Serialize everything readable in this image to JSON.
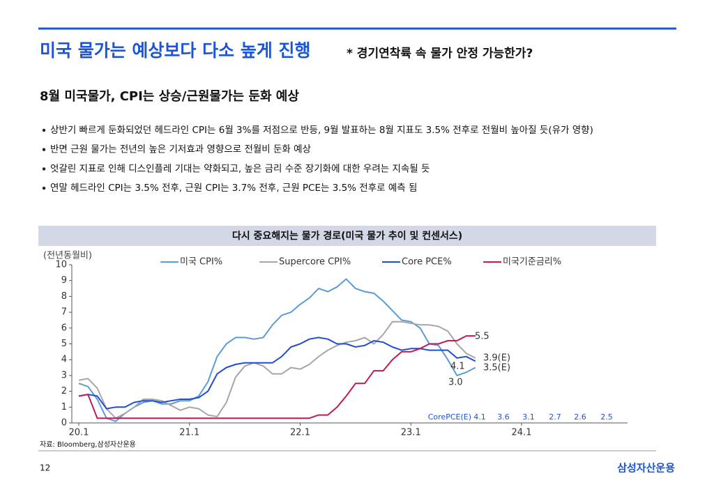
{
  "slide": {
    "title": "미국 물가는 예상보다 다소 높게 진행",
    "subtitle": "* 경기연착륙 속 물가 안정 가능한가?",
    "heading": "8월 미국물가, CPI는 상승/근원물가는 둔화 예상",
    "bullets": [
      "상반기 빠르게 둔화되었던 헤드라인 CPI는 6월 3%를 저점으로 반등, 9월 발표하는 8월 지표도 3.5% 전후로 전월비 높아질 듯(유가 영향)",
      "반면 근원 물가는 전년의 높은 기저효과 영향으로 전월비 둔화 예상",
      "엇갈린 지표로 인해 디스인플레 기대는 약화되고, 높은 금리 수준 장기화에 대한 우려는 지속될 듯",
      "연말 헤드라인 CPI는 3.5% 전후, 근원 CPI는 3.7% 전후, 근원 PCE는 3.5% 전후로 예측 됨"
    ],
    "source": "자료: Bloomberg,삼성자산운용",
    "page_number": "12",
    "logo": "삼성자산운용"
  },
  "chart_data": {
    "type": "line",
    "title": "다시 중요해지는 물가 경로(미국 물가 추이 및 컨센서스)",
    "y_label": "(전년동월비)",
    "categories": [
      "20.1",
      null,
      null,
      null,
      null,
      null,
      null,
      null,
      null,
      null,
      null,
      null,
      "21.1",
      null,
      null,
      null,
      null,
      null,
      null,
      null,
      null,
      null,
      null,
      null,
      "22.1",
      null,
      null,
      null,
      null,
      null,
      null,
      null,
      null,
      null,
      null,
      null,
      "23.1",
      null,
      null,
      null,
      null,
      null,
      null,
      null,
      null,
      null,
      null,
      null,
      "24.1",
      null,
      null,
      null,
      null,
      null,
      null,
      null,
      null,
      null,
      null,
      null
    ],
    "ylim": [
      0,
      10
    ],
    "yticks": [
      0,
      1,
      2,
      3,
      4,
      5,
      6,
      7,
      8,
      9,
      10
    ],
    "series": [
      {
        "name": "미국 CPI%",
        "color": "#5b9bd5",
        "values": [
          2.5,
          2.3,
          1.5,
          0.3,
          0.1,
          0.6,
          1.0,
          1.3,
          1.4,
          1.2,
          1.2,
          1.4,
          1.4,
          1.7,
          2.6,
          4.2,
          5.0,
          5.4,
          5.4,
          5.3,
          5.4,
          6.2,
          6.8,
          7.0,
          7.5,
          7.9,
          8.5,
          8.3,
          8.6,
          9.1,
          8.5,
          8.3,
          8.2,
          7.7,
          7.1,
          6.5,
          6.4,
          6.0,
          5.0,
          4.9,
          4.0,
          3.0,
          3.2,
          3.5,
          null,
          null,
          null,
          null,
          null,
          null,
          null,
          null,
          null,
          null,
          null,
          null,
          null,
          null,
          null,
          null
        ]
      },
      {
        "name": "Supercore CPI%",
        "color": "#a6a6a6",
        "values": [
          2.7,
          2.8,
          2.2,
          0.9,
          0.3,
          0.6,
          1.0,
          1.5,
          1.5,
          1.4,
          1.1,
          0.8,
          1.0,
          0.9,
          0.5,
          0.4,
          1.3,
          2.9,
          3.6,
          3.8,
          3.6,
          3.1,
          3.1,
          3.5,
          3.4,
          3.7,
          4.2,
          4.6,
          4.9,
          5.1,
          5.2,
          5.4,
          5.0,
          5.6,
          6.4,
          6.4,
          6.3,
          6.2,
          6.2,
          6.1,
          5.8,
          5.0,
          4.4,
          4.1,
          null,
          null,
          null,
          null,
          null,
          null,
          null,
          null,
          null,
          null,
          null,
          null,
          null,
          null,
          null,
          null
        ]
      },
      {
        "name": "Core PCE%",
        "color": "#1f4ecf",
        "values": [
          1.7,
          1.8,
          1.7,
          0.9,
          1.0,
          1.0,
          1.3,
          1.4,
          1.4,
          1.3,
          1.4,
          1.5,
          1.5,
          1.6,
          2.0,
          3.1,
          3.5,
          3.7,
          3.8,
          3.8,
          3.8,
          3.8,
          4.2,
          4.8,
          5.0,
          5.3,
          5.4,
          5.3,
          5.0,
          5.0,
          4.8,
          4.9,
          5.2,
          5.1,
          4.8,
          4.6,
          4.7,
          4.7,
          4.6,
          4.6,
          4.6,
          4.1,
          4.2,
          3.9,
          null,
          null,
          null,
          null,
          null,
          null,
          null,
          null,
          null,
          null,
          null,
          null,
          null,
          null,
          null,
          null
        ]
      },
      {
        "name": "미국기준금리%",
        "color": "#c0195a",
        "values": [
          1.7,
          1.8,
          0.3,
          0.3,
          0.3,
          0.3,
          0.3,
          0.3,
          0.3,
          0.3,
          0.3,
          0.3,
          0.3,
          0.3,
          0.3,
          0.3,
          0.3,
          0.3,
          0.3,
          0.3,
          0.3,
          0.3,
          0.3,
          0.3,
          0.3,
          0.3,
          0.5,
          0.5,
          1.0,
          1.7,
          2.5,
          2.5,
          3.3,
          3.3,
          4.0,
          4.5,
          4.5,
          4.7,
          5.0,
          5.0,
          5.2,
          5.2,
          5.5,
          5.5,
          null,
          null,
          null,
          null,
          null,
          null,
          null,
          null,
          null,
          null,
          null,
          null,
          null,
          null,
          null,
          null
        ]
      }
    ],
    "annotations": [
      "5.5",
      "3.9(E)",
      "3.5(E)",
      "4.1",
      "3.0"
    ],
    "forecast_row": {
      "label": "CorePCE(E)",
      "values": [
        4.1,
        3.6,
        3.1,
        2.7,
        2.6,
        2.5
      ]
    }
  }
}
